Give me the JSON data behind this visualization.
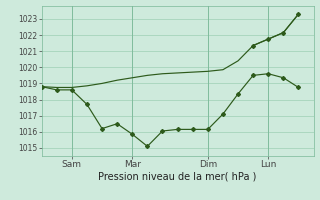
{
  "background_color": "#ceeadc",
  "grid_color": "#9ecfb5",
  "line_color": "#2d5a1b",
  "title": "Pression niveau de la mer( hPa )",
  "ylim": [
    1014.5,
    1023.8
  ],
  "yticks": [
    1015,
    1016,
    1017,
    1018,
    1019,
    1020,
    1021,
    1022,
    1023
  ],
  "x_tick_labels": [
    "Sam",
    "Mar",
    "Dim",
    "Lun"
  ],
  "x_tick_positions": [
    2,
    6,
    11,
    15
  ],
  "xlim": [
    0,
    18
  ],
  "figsize": [
    3.2,
    2.0
  ],
  "dpi": 100,
  "line1_x": [
    0,
    1,
    2,
    3,
    4,
    5,
    6,
    7,
    8,
    9,
    10,
    11,
    12,
    13,
    14,
    15,
    16,
    17
  ],
  "line1_y": [
    1018.8,
    1018.6,
    1018.6,
    1017.7,
    1016.2,
    1016.5,
    1015.85,
    1015.1,
    1016.05,
    1016.15,
    1016.15,
    1016.15,
    1017.1,
    1018.35,
    1019.5,
    1019.6,
    1019.35,
    1018.75
  ],
  "line2_x": [
    0,
    1,
    2,
    3,
    4,
    5,
    6,
    7,
    8,
    9,
    10,
    11,
    12,
    13,
    14,
    15,
    16,
    17
  ],
  "line2_y": [
    1018.8,
    1018.75,
    1018.75,
    1018.85,
    1019.0,
    1019.2,
    1019.35,
    1019.5,
    1019.6,
    1019.65,
    1019.7,
    1019.75,
    1019.85,
    1020.4,
    1021.35,
    1021.75,
    1022.15,
    1023.3
  ],
  "line3_x": [
    14,
    15,
    16,
    17
  ],
  "line3_y": [
    1021.35,
    1021.75,
    1022.15,
    1023.3
  ]
}
